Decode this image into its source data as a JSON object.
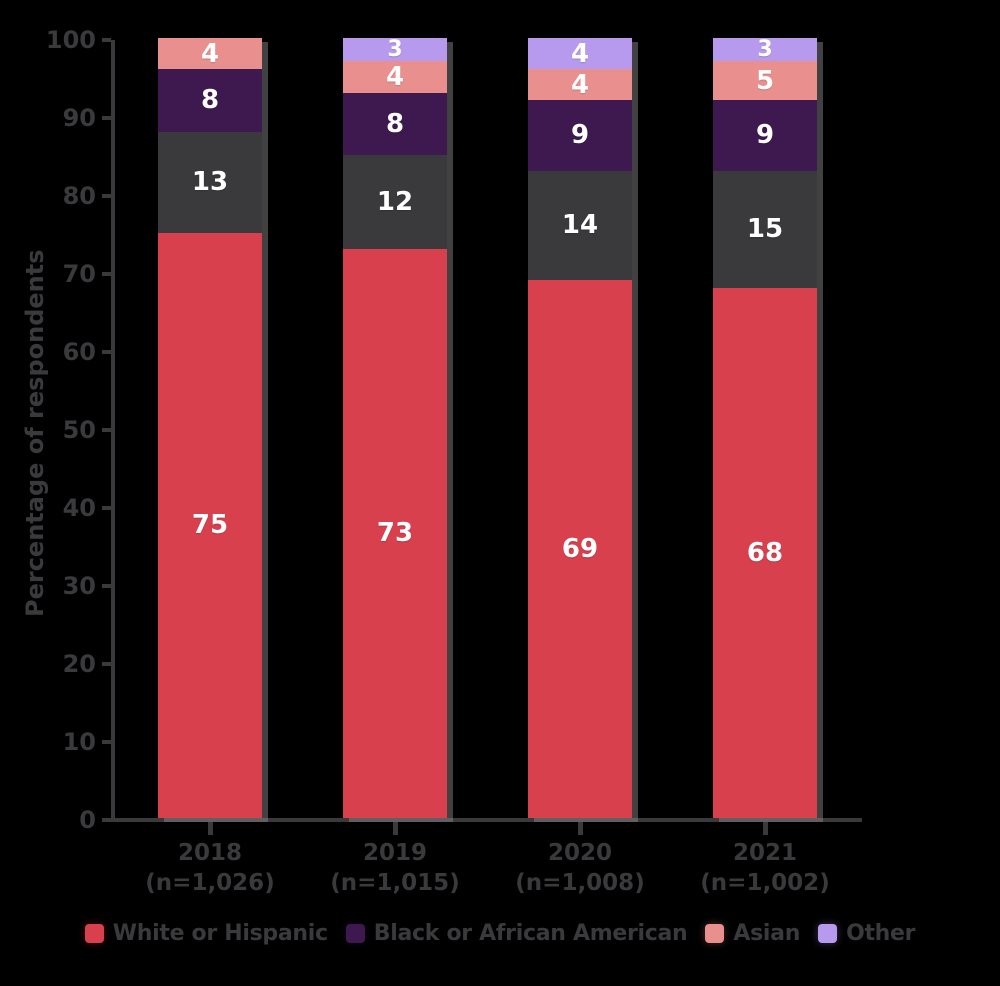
{
  "background_color": "#000000",
  "axis_color": "#3a3a3d",
  "text_color": "#3a3a3d",
  "value_label_color": "#ffffff",
  "y_axis": {
    "title": "Percentage of respondents",
    "min": 0,
    "max": 100,
    "tick_step": 10,
    "ticks": [
      "100",
      "90",
      "80",
      "70",
      "60",
      "50",
      "40",
      "30",
      "20",
      "10",
      "0"
    ]
  },
  "x_axis": {
    "categories": [
      {
        "line1": "2018",
        "line2": "(n=1,026)"
      },
      {
        "line1": "2019",
        "line2": "(n=1,015)"
      },
      {
        "line1": "2020",
        "line2": "(n=1,008)"
      },
      {
        "line1": "2021",
        "line2": "(n=1,002)"
      }
    ]
  },
  "chart_data": {
    "type": "bar",
    "stacked": true,
    "grid": false,
    "legend_position": "bottom",
    "ylim": [
      0,
      100
    ],
    "categories": [
      "2018 (n=1,026)",
      "2019 (n=1,015)",
      "2020 (n=1,008)",
      "2021 (n=1,002)"
    ],
    "series": [
      {
        "key": "white-or-hispanic",
        "name": "White or Hispanic",
        "color": "#d8404d",
        "in_legend": true,
        "values": [
          75,
          73,
          69,
          68
        ]
      },
      {
        "key": "unlabeled-dark-gray",
        "name": "",
        "color": "#3a393c",
        "in_legend": false,
        "values": [
          13,
          12,
          14,
          15
        ]
      },
      {
        "key": "black-or-african-american",
        "name": "Black or African American",
        "color": "#3d1950",
        "in_legend": true,
        "values": [
          8,
          8,
          9,
          9
        ]
      },
      {
        "key": "asian",
        "name": "Asian",
        "color": "#e9908e",
        "in_legend": true,
        "values": [
          4,
          4,
          4,
          5
        ]
      },
      {
        "key": "other",
        "name": "Other",
        "color": "#b79aed",
        "in_legend": true,
        "values": [
          0,
          3,
          4,
          3
        ]
      }
    ]
  },
  "legend": {
    "items": [
      {
        "key": "white-or-hispanic",
        "label": "White or Hispanic",
        "color": "#d8404d"
      },
      {
        "key": "black-or-african-american",
        "label": "Black or African American",
        "color": "#3d1950"
      },
      {
        "key": "asian",
        "label": "Asian",
        "color": "#e9908e"
      },
      {
        "key": "other",
        "label": "Other",
        "color": "#b79aed"
      }
    ]
  }
}
